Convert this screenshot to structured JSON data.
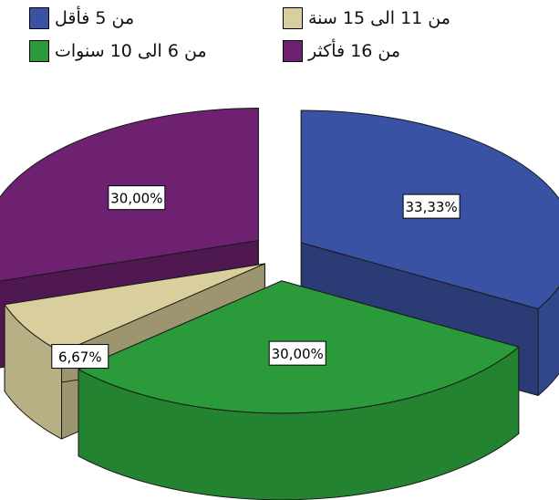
{
  "chart_data": {
    "type": "pie",
    "style": "3d-exploded",
    "slices": [
      {
        "label": "من 5 فأقل",
        "value": 33.33,
        "data_label": "33,33%",
        "color": "#3a52a4"
      },
      {
        "label": "من 6 الى 10 سنوات",
        "value": 30.0,
        "data_label": "30,00%",
        "color": "#2a9a3a"
      },
      {
        "label": "من 11 الى 15 سنة",
        "value": 6.67,
        "data_label": "6,67%",
        "color": "#d8cf9c"
      },
      {
        "label": "من 16 فأكثر",
        "value": 30.0,
        "data_label": "30,00%",
        "color": "#6e2170"
      }
    ],
    "legend_position": "top"
  }
}
